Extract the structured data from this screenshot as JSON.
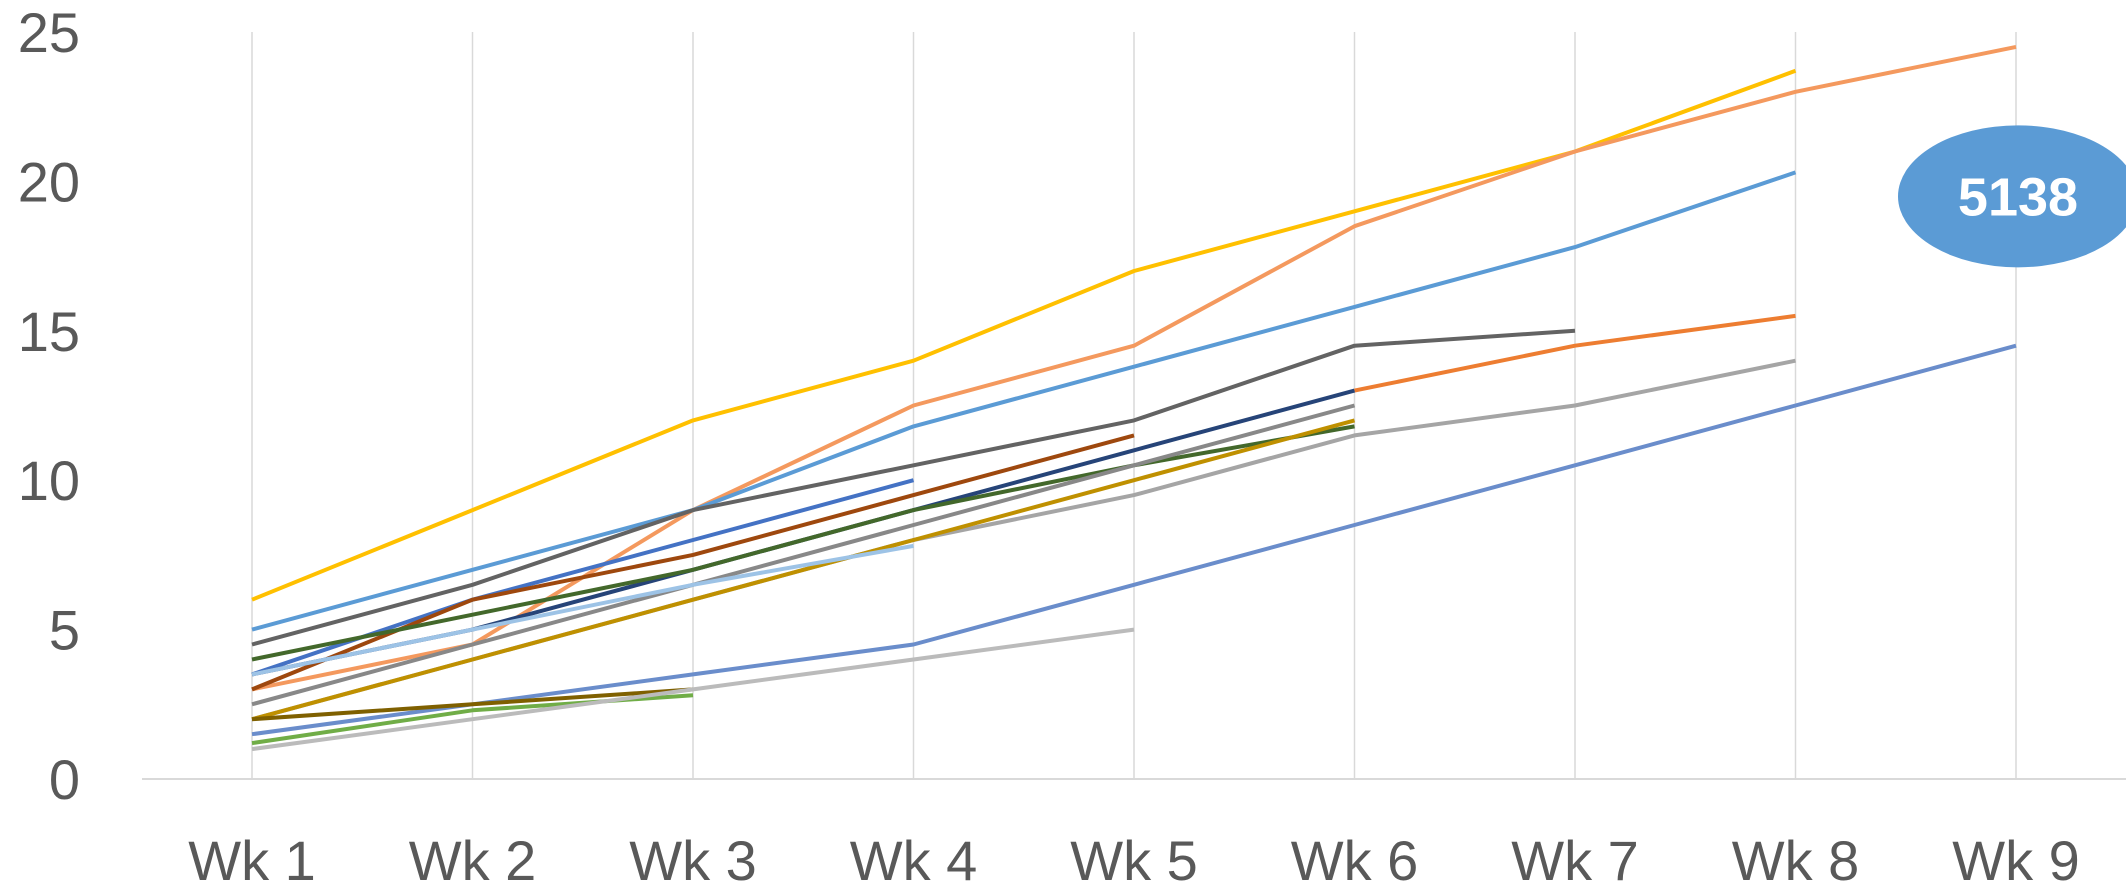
{
  "chart_data": {
    "type": "line",
    "title": "",
    "xlabel": "",
    "ylabel": "",
    "categories": [
      "Wk 1",
      "Wk 2",
      "Wk 3",
      "Wk 4",
      "Wk 5",
      "Wk 6",
      "Wk 7",
      "Wk 8",
      "Wk 9"
    ],
    "ylim": [
      0,
      25
    ],
    "yticks": [
      "0",
      "5",
      "10",
      "15",
      "20",
      "25"
    ],
    "grid": "vertical",
    "legend": "none",
    "series": [
      {
        "color": "#FFC000",
        "values": [
          6,
          9,
          12,
          14,
          17,
          19,
          21,
          23.7,
          null
        ]
      },
      {
        "color": "#F4995E",
        "values": [
          3,
          4.5,
          9,
          12.5,
          14.5,
          18.5,
          21,
          23,
          24.5
        ]
      },
      {
        "color": "#5B9BD5",
        "values": [
          5,
          7,
          9,
          11.8,
          13.8,
          15.8,
          17.8,
          20.3,
          null
        ]
      },
      {
        "color": "#636363",
        "values": [
          4.5,
          6.5,
          9,
          10.5,
          12,
          14.5,
          15,
          null,
          null
        ]
      },
      {
        "color": "#ED7D31",
        "values": [
          null,
          null,
          null,
          null,
          null,
          13,
          14.5,
          15.5,
          null
        ]
      },
      {
        "color": "#A5A5A5",
        "values": [
          2,
          4,
          6,
          8,
          9.5,
          11.5,
          12.5,
          14,
          null
        ]
      },
      {
        "color": "#6A8DCB",
        "values": [
          1.5,
          2.5,
          3.5,
          4.5,
          6.5,
          8.5,
          10.5,
          12.5,
          14.5
        ]
      },
      {
        "color": "#4472C4",
        "values": [
          3.5,
          6,
          8,
          10,
          null,
          null,
          null,
          null,
          null
        ]
      },
      {
        "color": "#9E480E",
        "values": [
          3,
          6,
          7.5,
          9.5,
          11.5,
          null,
          null,
          null,
          null
        ]
      },
      {
        "color": "#264478",
        "values": [
          3.5,
          5,
          7,
          9,
          11,
          13,
          null,
          null,
          null
        ]
      },
      {
        "color": "#43682B",
        "values": [
          4,
          5.5,
          7,
          9,
          10.5,
          11.8,
          null,
          null,
          null
        ]
      },
      {
        "color": "#888888",
        "values": [
          2.5,
          4.5,
          6.5,
          8.5,
          10.5,
          12.5,
          null,
          null,
          null
        ]
      },
      {
        "color": "#BF9000",
        "values": [
          2,
          4,
          6,
          8,
          10,
          12,
          null,
          null,
          null
        ]
      },
      {
        "color": "#9DC3E6",
        "values": [
          3.5,
          5,
          6.5,
          7.8,
          null,
          null,
          null,
          null,
          null
        ]
      },
      {
        "color": "#7F6000",
        "values": [
          2,
          2.5,
          3,
          null,
          null,
          null,
          null,
          null,
          null
        ]
      },
      {
        "color": "#70AD47",
        "values": [
          1.2,
          2.3,
          2.8,
          null,
          null,
          null,
          null,
          null,
          null
        ]
      },
      {
        "color": "#BBBBBB",
        "values": [
          1,
          2,
          3,
          4,
          5,
          null,
          null,
          null,
          null
        ]
      }
    ],
    "annotation": {
      "text": "5138",
      "color": "#5B9BD5",
      "x": "Wk 9",
      "y": 19.5
    }
  },
  "colors": {
    "axis": "#D9D9D9",
    "gridline": "#D9D9D9",
    "tick_text": "#595959"
  }
}
